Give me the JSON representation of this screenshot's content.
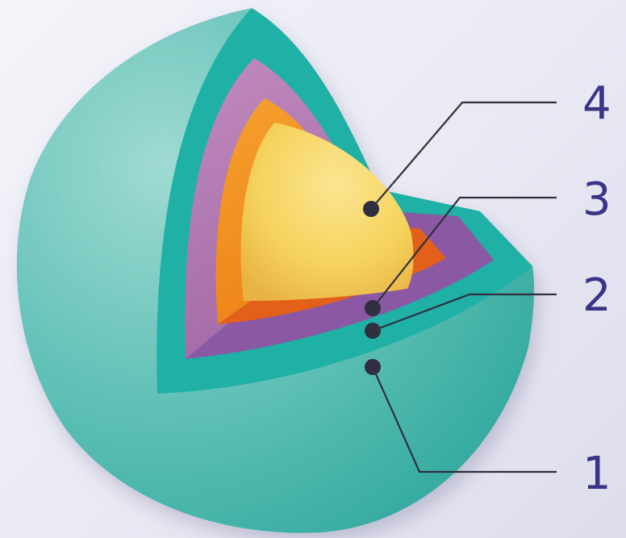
{
  "diagram": {
    "colors": {
      "outer_shell_light": "#9fdad2",
      "outer_shell": "#5fc0b6",
      "outer_shell_dark": "#32a99f",
      "cut_teal": "#1fb0a6",
      "layer2_face": "#b77cb6",
      "layer2_cut": "#8b58a3",
      "layer3_face": "#f28e20",
      "layer3_cut": "#e2601a",
      "core_light": "#fbe592",
      "core_mid": "#f6d35d",
      "core_dark": "#e8b344",
      "leader": "#2f2f3f",
      "label": "#3b3486"
    },
    "layers": [
      {
        "id": "1",
        "label": "1"
      },
      {
        "id": "2",
        "label": "2"
      },
      {
        "id": "3",
        "label": "3"
      },
      {
        "id": "4",
        "label": "4"
      }
    ]
  }
}
